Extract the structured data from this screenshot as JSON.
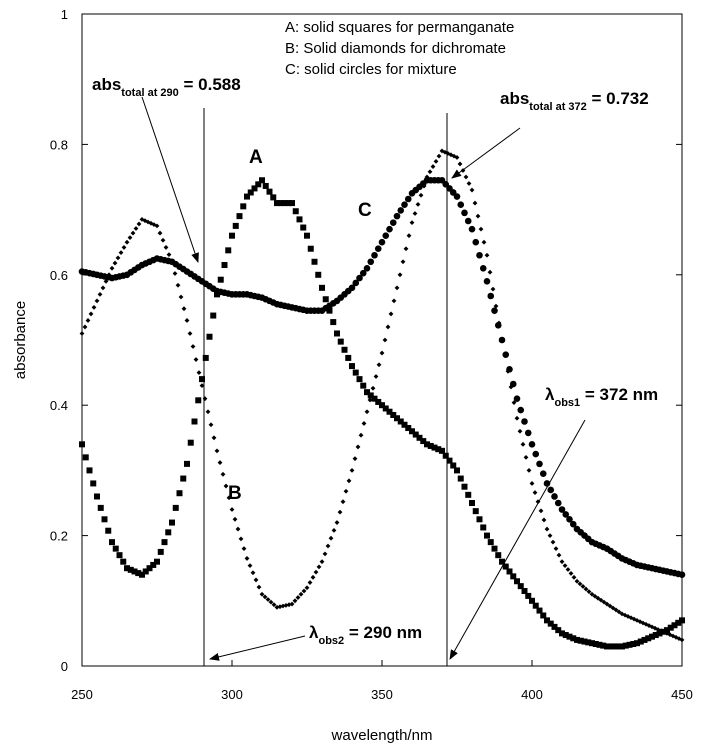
{
  "chart_data": {
    "type": "scatter",
    "xlabel": "wavelength/nm",
    "ylabel": "absorbance",
    "xlim": [
      250,
      450
    ],
    "ylim": [
      0,
      1
    ],
    "x_ticks": [
      250,
      300,
      350,
      400,
      450
    ],
    "y_ticks": [
      0,
      0.2,
      0.4,
      0.6,
      0.8,
      1
    ],
    "y_tick_labels": [
      "0",
      "0.2",
      "0.4",
      "0.6",
      "0.8",
      "1"
    ],
    "legend": [
      "A: solid squares for permanganate",
      "B: Solid diamonds for dichromate",
      "C: solid circles for mixture"
    ],
    "series": [
      {
        "name": "A",
        "marker": "square",
        "description": "permanganate",
        "points": [
          [
            250,
            0.34
          ],
          [
            255,
            0.26
          ],
          [
            260,
            0.19
          ],
          [
            265,
            0.15
          ],
          [
            270,
            0.14
          ],
          [
            275,
            0.16
          ],
          [
            280,
            0.22
          ],
          [
            285,
            0.31
          ],
          [
            290,
            0.44
          ],
          [
            295,
            0.57
          ],
          [
            300,
            0.66
          ],
          [
            305,
            0.72
          ],
          [
            310,
            0.745
          ],
          [
            315,
            0.71
          ],
          [
            320,
            0.71
          ],
          [
            325,
            0.66
          ],
          [
            330,
            0.58
          ],
          [
            335,
            0.51
          ],
          [
            340,
            0.46
          ],
          [
            345,
            0.42
          ],
          [
            350,
            0.4
          ],
          [
            355,
            0.38
          ],
          [
            360,
            0.36
          ],
          [
            365,
            0.34
          ],
          [
            370,
            0.33
          ],
          [
            375,
            0.3
          ],
          [
            380,
            0.25
          ],
          [
            385,
            0.2
          ],
          [
            390,
            0.16
          ],
          [
            395,
            0.13
          ],
          [
            400,
            0.1
          ],
          [
            405,
            0.07
          ],
          [
            410,
            0.05
          ],
          [
            415,
            0.04
          ],
          [
            420,
            0.035
          ],
          [
            425,
            0.03
          ],
          [
            430,
            0.03
          ],
          [
            435,
            0.035
          ],
          [
            440,
            0.045
          ],
          [
            445,
            0.055
          ],
          [
            450,
            0.07
          ]
        ]
      },
      {
        "name": "B",
        "marker": "diamond",
        "description": "dichromate",
        "points": [
          [
            250,
            0.51
          ],
          [
            255,
            0.56
          ],
          [
            260,
            0.61
          ],
          [
            265,
            0.65
          ],
          [
            270,
            0.685
          ],
          [
            275,
            0.675
          ],
          [
            280,
            0.62
          ],
          [
            285,
            0.53
          ],
          [
            290,
            0.43
          ],
          [
            295,
            0.33
          ],
          [
            300,
            0.24
          ],
          [
            305,
            0.165
          ],
          [
            310,
            0.11
          ],
          [
            315,
            0.09
          ],
          [
            320,
            0.095
          ],
          [
            325,
            0.12
          ],
          [
            330,
            0.16
          ],
          [
            335,
            0.22
          ],
          [
            340,
            0.3
          ],
          [
            345,
            0.39
          ],
          [
            350,
            0.48
          ],
          [
            355,
            0.58
          ],
          [
            360,
            0.68
          ],
          [
            365,
            0.75
          ],
          [
            370,
            0.79
          ],
          [
            375,
            0.78
          ],
          [
            380,
            0.73
          ],
          [
            385,
            0.63
          ],
          [
            390,
            0.5
          ],
          [
            395,
            0.38
          ],
          [
            400,
            0.28
          ],
          [
            405,
            0.21
          ],
          [
            410,
            0.16
          ],
          [
            415,
            0.13
          ],
          [
            420,
            0.11
          ],
          [
            425,
            0.095
          ],
          [
            430,
            0.08
          ],
          [
            435,
            0.07
          ],
          [
            440,
            0.06
          ],
          [
            445,
            0.05
          ],
          [
            450,
            0.04
          ]
        ]
      },
      {
        "name": "C",
        "marker": "circle",
        "description": "mixture",
        "points": [
          [
            250,
            0.605
          ],
          [
            255,
            0.6
          ],
          [
            260,
            0.595
          ],
          [
            265,
            0.6
          ],
          [
            270,
            0.615
          ],
          [
            275,
            0.625
          ],
          [
            280,
            0.62
          ],
          [
            285,
            0.605
          ],
          [
            290,
            0.59
          ],
          [
            295,
            0.575
          ],
          [
            300,
            0.57
          ],
          [
            305,
            0.57
          ],
          [
            310,
            0.565
          ],
          [
            315,
            0.555
          ],
          [
            320,
            0.55
          ],
          [
            325,
            0.545
          ],
          [
            330,
            0.545
          ],
          [
            335,
            0.56
          ],
          [
            340,
            0.58
          ],
          [
            345,
            0.61
          ],
          [
            350,
            0.65
          ],
          [
            355,
            0.69
          ],
          [
            360,
            0.725
          ],
          [
            365,
            0.745
          ],
          [
            370,
            0.745
          ],
          [
            375,
            0.72
          ],
          [
            380,
            0.67
          ],
          [
            385,
            0.59
          ],
          [
            390,
            0.5
          ],
          [
            395,
            0.41
          ],
          [
            400,
            0.34
          ],
          [
            405,
            0.28
          ],
          [
            410,
            0.24
          ],
          [
            415,
            0.21
          ],
          [
            420,
            0.19
          ],
          [
            425,
            0.18
          ],
          [
            430,
            0.165
          ],
          [
            435,
            0.155
          ],
          [
            440,
            0.15
          ],
          [
            445,
            0.145
          ],
          [
            450,
            0.14
          ]
        ]
      }
    ],
    "vertical_markers": [
      290,
      372
    ],
    "annotations": {
      "abs290_main": "abs",
      "abs290_sub": "total at 290",
      "abs290_val": " = 0.588",
      "abs372_main": "abs",
      "abs372_sub": "total at 372",
      "abs372_val": " = 0.732",
      "lam290_main": "λ",
      "lam290_sub": "obs2",
      "lam290_val": " = 290 nm",
      "lam372_main": "λ",
      "lam372_sub": "obs1",
      "lam372_val": " = 372 nm",
      "label_A": "A",
      "label_B": "B",
      "label_C": "C"
    }
  }
}
